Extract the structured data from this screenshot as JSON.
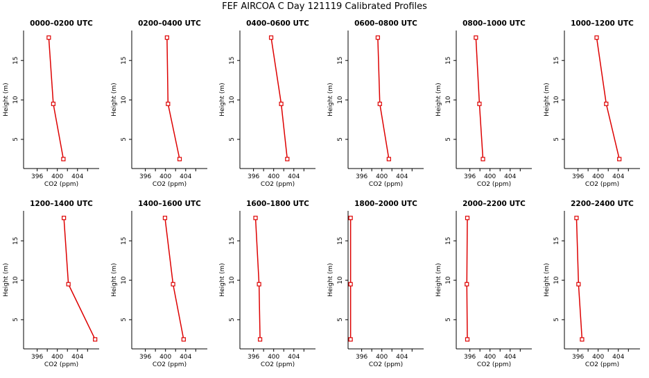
{
  "figure": {
    "title": "FEF  AIRCOA C  Day 121119  Calibrated Profiles"
  },
  "chart_data": [
    {
      "type": "line",
      "title": "0000–0200 UTC",
      "xlabel": "CO2 (ppm)",
      "ylabel": "Height (m)",
      "xlim": [
        393.3,
        408.3
      ],
      "ylim": [
        1.3,
        18.8
      ],
      "xticks": [
        396,
        400,
        404
      ],
      "yticks": [
        5,
        10,
        15
      ],
      "x": [
        398.3,
        399.2,
        401.2
      ],
      "y": [
        17.9,
        9.5,
        2.5
      ]
    },
    {
      "type": "line",
      "title": "0200–0400 UTC",
      "xlabel": "CO2 (ppm)",
      "ylabel": "Height (m)",
      "xlim": [
        393.3,
        408.3
      ],
      "ylim": [
        1.3,
        18.8
      ],
      "xticks": [
        396,
        400,
        404
      ],
      "yticks": [
        5,
        10,
        15
      ],
      "x": [
        400.3,
        400.5,
        402.8
      ],
      "y": [
        17.9,
        9.5,
        2.5
      ]
    },
    {
      "type": "line",
      "title": "0400–0600 UTC",
      "xlabel": "CO2 (ppm)",
      "ylabel": "Height (m)",
      "xlim": [
        393.3,
        408.3
      ],
      "ylim": [
        1.3,
        18.8
      ],
      "xticks": [
        396,
        400,
        404
      ],
      "yticks": [
        5,
        10,
        15
      ],
      "x": [
        399.5,
        401.5,
        402.7
      ],
      "y": [
        17.9,
        9.5,
        2.5
      ]
    },
    {
      "type": "line",
      "title": "0600–0800 UTC",
      "xlabel": "CO2 (ppm)",
      "ylabel": "Height (m)",
      "xlim": [
        393.3,
        408.3
      ],
      "ylim": [
        1.3,
        18.8
      ],
      "xticks": [
        396,
        400,
        404
      ],
      "yticks": [
        5,
        10,
        15
      ],
      "x": [
        399.2,
        399.6,
        401.4
      ],
      "y": [
        17.9,
        9.5,
        2.5
      ]
    },
    {
      "type": "line",
      "title": "0800–1000 UTC",
      "xlabel": "CO2 (ppm)",
      "ylabel": "Height (m)",
      "xlim": [
        393.3,
        408.3
      ],
      "ylim": [
        1.3,
        18.8
      ],
      "xticks": [
        396,
        400,
        404
      ],
      "yticks": [
        5,
        10,
        15
      ],
      "x": [
        397.2,
        397.9,
        398.6
      ],
      "y": [
        17.9,
        9.5,
        2.5
      ]
    },
    {
      "type": "line",
      "title": "1000–1200 UTC",
      "xlabel": "CO2 (ppm)",
      "ylabel": "Height (m)",
      "xlim": [
        393.3,
        408.3
      ],
      "ylim": [
        1.3,
        18.8
      ],
      "xticks": [
        396,
        400,
        404
      ],
      "yticks": [
        5,
        10,
        15
      ],
      "x": [
        399.7,
        401.6,
        404.2
      ],
      "y": [
        17.9,
        9.5,
        2.5
      ]
    },
    {
      "type": "line",
      "title": "1200–1400 UTC",
      "xlabel": "CO2 (ppm)",
      "ylabel": "Height (m)",
      "xlim": [
        393.3,
        408.3
      ],
      "ylim": [
        1.3,
        18.8
      ],
      "xticks": [
        396,
        400,
        404
      ],
      "yticks": [
        5,
        10,
        15
      ],
      "x": [
        401.3,
        402.2,
        407.5
      ],
      "y": [
        17.9,
        9.5,
        2.5
      ]
    },
    {
      "type": "line",
      "title": "1400–1600 UTC",
      "xlabel": "CO2 (ppm)",
      "ylabel": "Height (m)",
      "xlim": [
        393.3,
        408.3
      ],
      "ylim": [
        1.3,
        18.8
      ],
      "xticks": [
        396,
        400,
        404
      ],
      "yticks": [
        5,
        10,
        15
      ],
      "x": [
        399.9,
        401.5,
        403.6
      ],
      "y": [
        17.9,
        9.5,
        2.5
      ]
    },
    {
      "type": "line",
      "title": "1600–1800 UTC",
      "xlabel": "CO2 (ppm)",
      "ylabel": "Height (m)",
      "xlim": [
        393.3,
        408.3
      ],
      "ylim": [
        1.3,
        18.8
      ],
      "xticks": [
        396,
        400,
        404
      ],
      "yticks": [
        5,
        10,
        15
      ],
      "x": [
        396.4,
        397.1,
        397.3
      ],
      "y": [
        17.9,
        9.5,
        2.5
      ]
    },
    {
      "type": "line",
      "title": "1800–2000 UTC",
      "xlabel": "CO2 (ppm)",
      "ylabel": "Height (m)",
      "xlim": [
        393.3,
        408.3
      ],
      "ylim": [
        1.3,
        18.8
      ],
      "xticks": [
        396,
        400,
        404
      ],
      "yticks": [
        5,
        10,
        15
      ],
      "x": [
        393.8,
        393.8,
        393.8
      ],
      "y": [
        17.9,
        9.5,
        2.5
      ]
    },
    {
      "type": "line",
      "title": "2000–2200 UTC",
      "xlabel": "CO2 (ppm)",
      "ylabel": "Height (m)",
      "xlim": [
        393.3,
        408.3
      ],
      "ylim": [
        1.3,
        18.8
      ],
      "xticks": [
        396,
        400,
        404
      ],
      "yticks": [
        5,
        10,
        15
      ],
      "x": [
        395.5,
        395.4,
        395.5
      ],
      "y": [
        17.9,
        9.5,
        2.5
      ]
    },
    {
      "type": "line",
      "title": "2200–2400 UTC",
      "xlabel": "CO2 (ppm)",
      "ylabel": "Height (m)",
      "xlim": [
        393.3,
        408.3
      ],
      "ylim": [
        1.3,
        18.8
      ],
      "xticks": [
        396,
        400,
        404
      ],
      "yticks": [
        5,
        10,
        15
      ],
      "x": [
        395.7,
        396.1,
        396.8
      ],
      "y": [
        17.9,
        9.5,
        2.5
      ]
    }
  ],
  "style": {
    "series_color": "#dd0000",
    "axis_color": "#000000"
  }
}
